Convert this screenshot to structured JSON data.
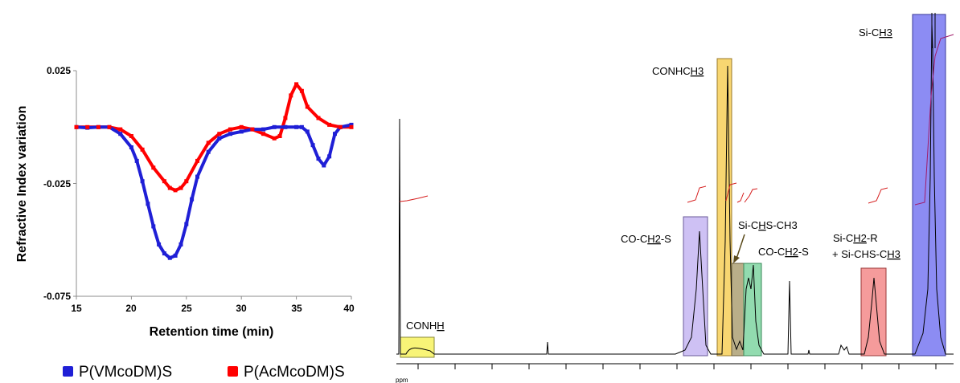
{
  "chart_data": [
    {
      "type": "line",
      "title": "",
      "xlabel": "Retention time (min)",
      "ylabel": "Refractive Index variation",
      "xlim": [
        15,
        40
      ],
      "ylim": [
        -0.075,
        0.025
      ],
      "x_ticks": [
        "15",
        "20",
        "25",
        "30",
        "35",
        "40"
      ],
      "y_ticks": [
        "0.025",
        "-0.025",
        "-0.075"
      ],
      "grid": false,
      "legend_position": "bottom",
      "series": [
        {
          "name": "P(VMcoDM)S",
          "color": "#1f1fd6",
          "marker": "square",
          "x": [
            15,
            16,
            17,
            18,
            19,
            20,
            20.5,
            21,
            21.5,
            22,
            22.5,
            23,
            23.5,
            24,
            24.5,
            25,
            25.5,
            26,
            27,
            28,
            29,
            30,
            31,
            32,
            33,
            34,
            35,
            35.5,
            36,
            36.5,
            37,
            37.5,
            38,
            38.5,
            39,
            40
          ],
          "y": [
            0.0,
            -0.0003,
            0.0,
            0.0,
            -0.003,
            -0.009,
            -0.015,
            -0.024,
            -0.034,
            -0.044,
            -0.052,
            -0.056,
            -0.058,
            -0.057,
            -0.052,
            -0.043,
            -0.032,
            -0.022,
            -0.011,
            -0.005,
            -0.003,
            -0.002,
            -0.001,
            -0.001,
            0.0,
            0.0,
            0.0,
            0.0,
            -0.002,
            -0.008,
            -0.014,
            -0.017,
            -0.013,
            -0.003,
            0.0,
            0.001
          ]
        },
        {
          "name": "P(AcMcoDM)S",
          "color": "#ff0000",
          "marker": "square",
          "x": [
            15,
            16,
            17,
            18,
            19,
            20,
            21,
            22,
            23,
            23.5,
            24,
            24.5,
            25,
            26,
            27,
            28,
            29,
            30,
            31,
            32,
            33,
            33.5,
            34,
            34.5,
            35,
            35.5,
            36,
            37,
            38,
            39,
            40
          ],
          "y": [
            0.0,
            0.0,
            0.0,
            0.0,
            -0.001,
            -0.004,
            -0.01,
            -0.018,
            -0.024,
            -0.027,
            -0.028,
            -0.027,
            -0.024,
            -0.015,
            -0.007,
            -0.003,
            -0.001,
            0.0,
            -0.001,
            -0.003,
            -0.005,
            -0.004,
            0.004,
            0.014,
            0.019,
            0.016,
            0.009,
            0.004,
            0.001,
            0.0,
            0.0
          ]
        }
      ]
    },
    {
      "type": "line",
      "title": "",
      "xlabel": "ppm",
      "ylabel": "",
      "grid": false,
      "annotations": [
        {
          "label_parts": [
            [
              "CONH",
              false
            ],
            [
              "H",
              true
            ]
          ],
          "color": "#f5f04a"
        },
        {
          "label_parts": [
            [
              "CO-C",
              false
            ],
            [
              "H2",
              true
            ],
            [
              "-S",
              false
            ]
          ],
          "color": "#b9a6f0"
        },
        {
          "label_parts": [
            [
              "CONHC",
              false
            ],
            [
              "H3",
              true
            ]
          ],
          "color": "#f5c842"
        },
        {
          "label_parts": [
            [
              "Si-C",
              false
            ],
            [
              "H",
              true
            ],
            [
              "S-CH3",
              false
            ]
          ],
          "color": "#a79a6c"
        },
        {
          "label_parts": [
            [
              "CO-C",
              false
            ],
            [
              "H2",
              true
            ],
            [
              "-S",
              false
            ]
          ],
          "color": "#6ecf94"
        },
        {
          "label_parts": [
            [
              "Si-C",
              false
            ],
            [
              "H2",
              true
            ],
            [
              "-R",
              false
            ]
          ],
          "color": "#f27a7a"
        },
        {
          "label_parts": [
            [
              "+ Si-CHS-C",
              false
            ],
            [
              "H3",
              true
            ]
          ],
          "color": "#f27a7a"
        },
        {
          "label_parts": [
            [
              "Si-C",
              false
            ],
            [
              "H3",
              true
            ]
          ],
          "color": "#6f6ff0"
        }
      ]
    }
  ]
}
